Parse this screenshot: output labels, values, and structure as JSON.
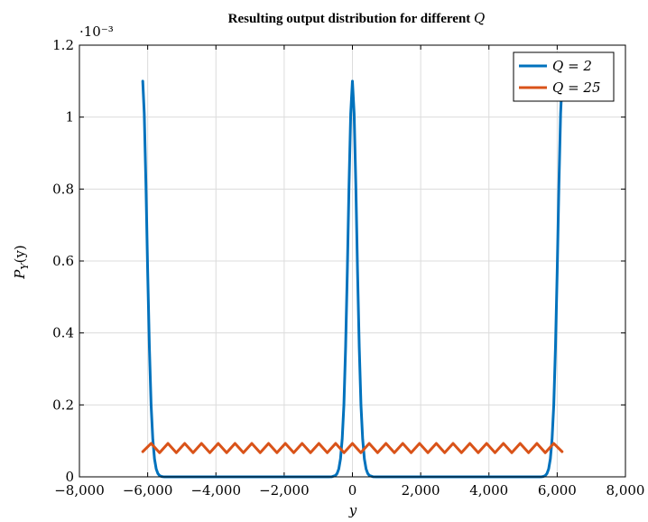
{
  "chart_data": {
    "type": "line",
    "title": "Resulting output distribution for different Q",
    "title_parts": {
      "text": "Resulting output distribution for different ",
      "var": "Q"
    },
    "xlabel": "y",
    "ylabel": "P_Y(y)",
    "ylabel_parts": {
      "main": "P",
      "sub": "Y",
      "args": "(y)"
    },
    "y_exponent": "·10⁻³",
    "xlim": [
      -8000,
      8000
    ],
    "ylim": [
      0,
      1.2
    ],
    "x_ticks": [
      -8000,
      -6000,
      -4000,
      -2000,
      0,
      2000,
      4000,
      6000,
      8000
    ],
    "x_tick_labels": [
      "−8,000",
      "−6,000",
      "−4,000",
      "−2,000",
      "0",
      "2,000",
      "4,000",
      "6,000",
      "8,000"
    ],
    "y_ticks": [
      0,
      0.2,
      0.4,
      0.6,
      0.8,
      1,
      1.2
    ],
    "y_tick_labels": [
      "0",
      "0.2",
      "0.4",
      "0.6",
      "0.8",
      "1",
      "1.2"
    ],
    "grid": true,
    "legend_position": "top-right",
    "series": [
      {
        "name": "Q = 2",
        "color": "#0072bd",
        "x": [
          -6144,
          -6100,
          -6050,
          -6000,
          -5950,
          -5900,
          -5850,
          -5800,
          -5750,
          -5700,
          -5650,
          -5600,
          -5550,
          -5500,
          -5400,
          -4000,
          -2000,
          -700,
          -600,
          -500,
          -450,
          -400,
          -350,
          -300,
          -250,
          -200,
          -150,
          -100,
          -50,
          0,
          50,
          100,
          150,
          200,
          250,
          300,
          350,
          400,
          450,
          500,
          600,
          700,
          2000,
          4000,
          5400,
          5500,
          5550,
          5600,
          5650,
          5700,
          5750,
          5800,
          5850,
          5900,
          5950,
          6000,
          6050,
          6100,
          6144
        ],
        "values": [
          1.1,
          1.01,
          0.81,
          0.57,
          0.36,
          0.2,
          0.105,
          0.05,
          0.022,
          0.009,
          0.0035,
          0.0012,
          0.0004,
          0.0001,
          0,
          0,
          0,
          0,
          0.0004,
          0.0035,
          0.009,
          0.022,
          0.05,
          0.105,
          0.2,
          0.36,
          0.57,
          0.81,
          1.01,
          1.1,
          1.01,
          0.81,
          0.57,
          0.36,
          0.2,
          0.105,
          0.05,
          0.022,
          0.009,
          0.0035,
          0.0004,
          0,
          0,
          0,
          0,
          0.0001,
          0.0004,
          0.0012,
          0.0035,
          0.009,
          0.022,
          0.05,
          0.105,
          0.2,
          0.36,
          0.57,
          0.81,
          1.01,
          1.1
        ]
      },
      {
        "name": "Q = 25",
        "color": "#d95319",
        "x": [
          -6144,
          -5898,
          -5652,
          -5406,
          -5161,
          -4915,
          -4669,
          -4424,
          -4178,
          -3932,
          -3686,
          -3441,
          -3195,
          -2949,
          -2703,
          -2458,
          -2212,
          -1966,
          -1720,
          -1475,
          -1229,
          -983,
          -737,
          -492,
          -246,
          0,
          246,
          492,
          737,
          983,
          1229,
          1475,
          1720,
          1966,
          2212,
          2458,
          2703,
          2949,
          3195,
          3441,
          3686,
          3932,
          4178,
          4424,
          4669,
          4915,
          5161,
          5406,
          5652,
          5898,
          6144
        ],
        "values": [
          0.07,
          0.093,
          0.067,
          0.093,
          0.067,
          0.093,
          0.067,
          0.093,
          0.067,
          0.093,
          0.067,
          0.093,
          0.067,
          0.093,
          0.067,
          0.093,
          0.067,
          0.093,
          0.067,
          0.093,
          0.067,
          0.093,
          0.067,
          0.093,
          0.067,
          0.093,
          0.067,
          0.093,
          0.067,
          0.093,
          0.067,
          0.093,
          0.067,
          0.093,
          0.067,
          0.093,
          0.067,
          0.093,
          0.067,
          0.093,
          0.067,
          0.093,
          0.067,
          0.093,
          0.067,
          0.093,
          0.067,
          0.093,
          0.067,
          0.093,
          0.07
        ]
      }
    ]
  }
}
